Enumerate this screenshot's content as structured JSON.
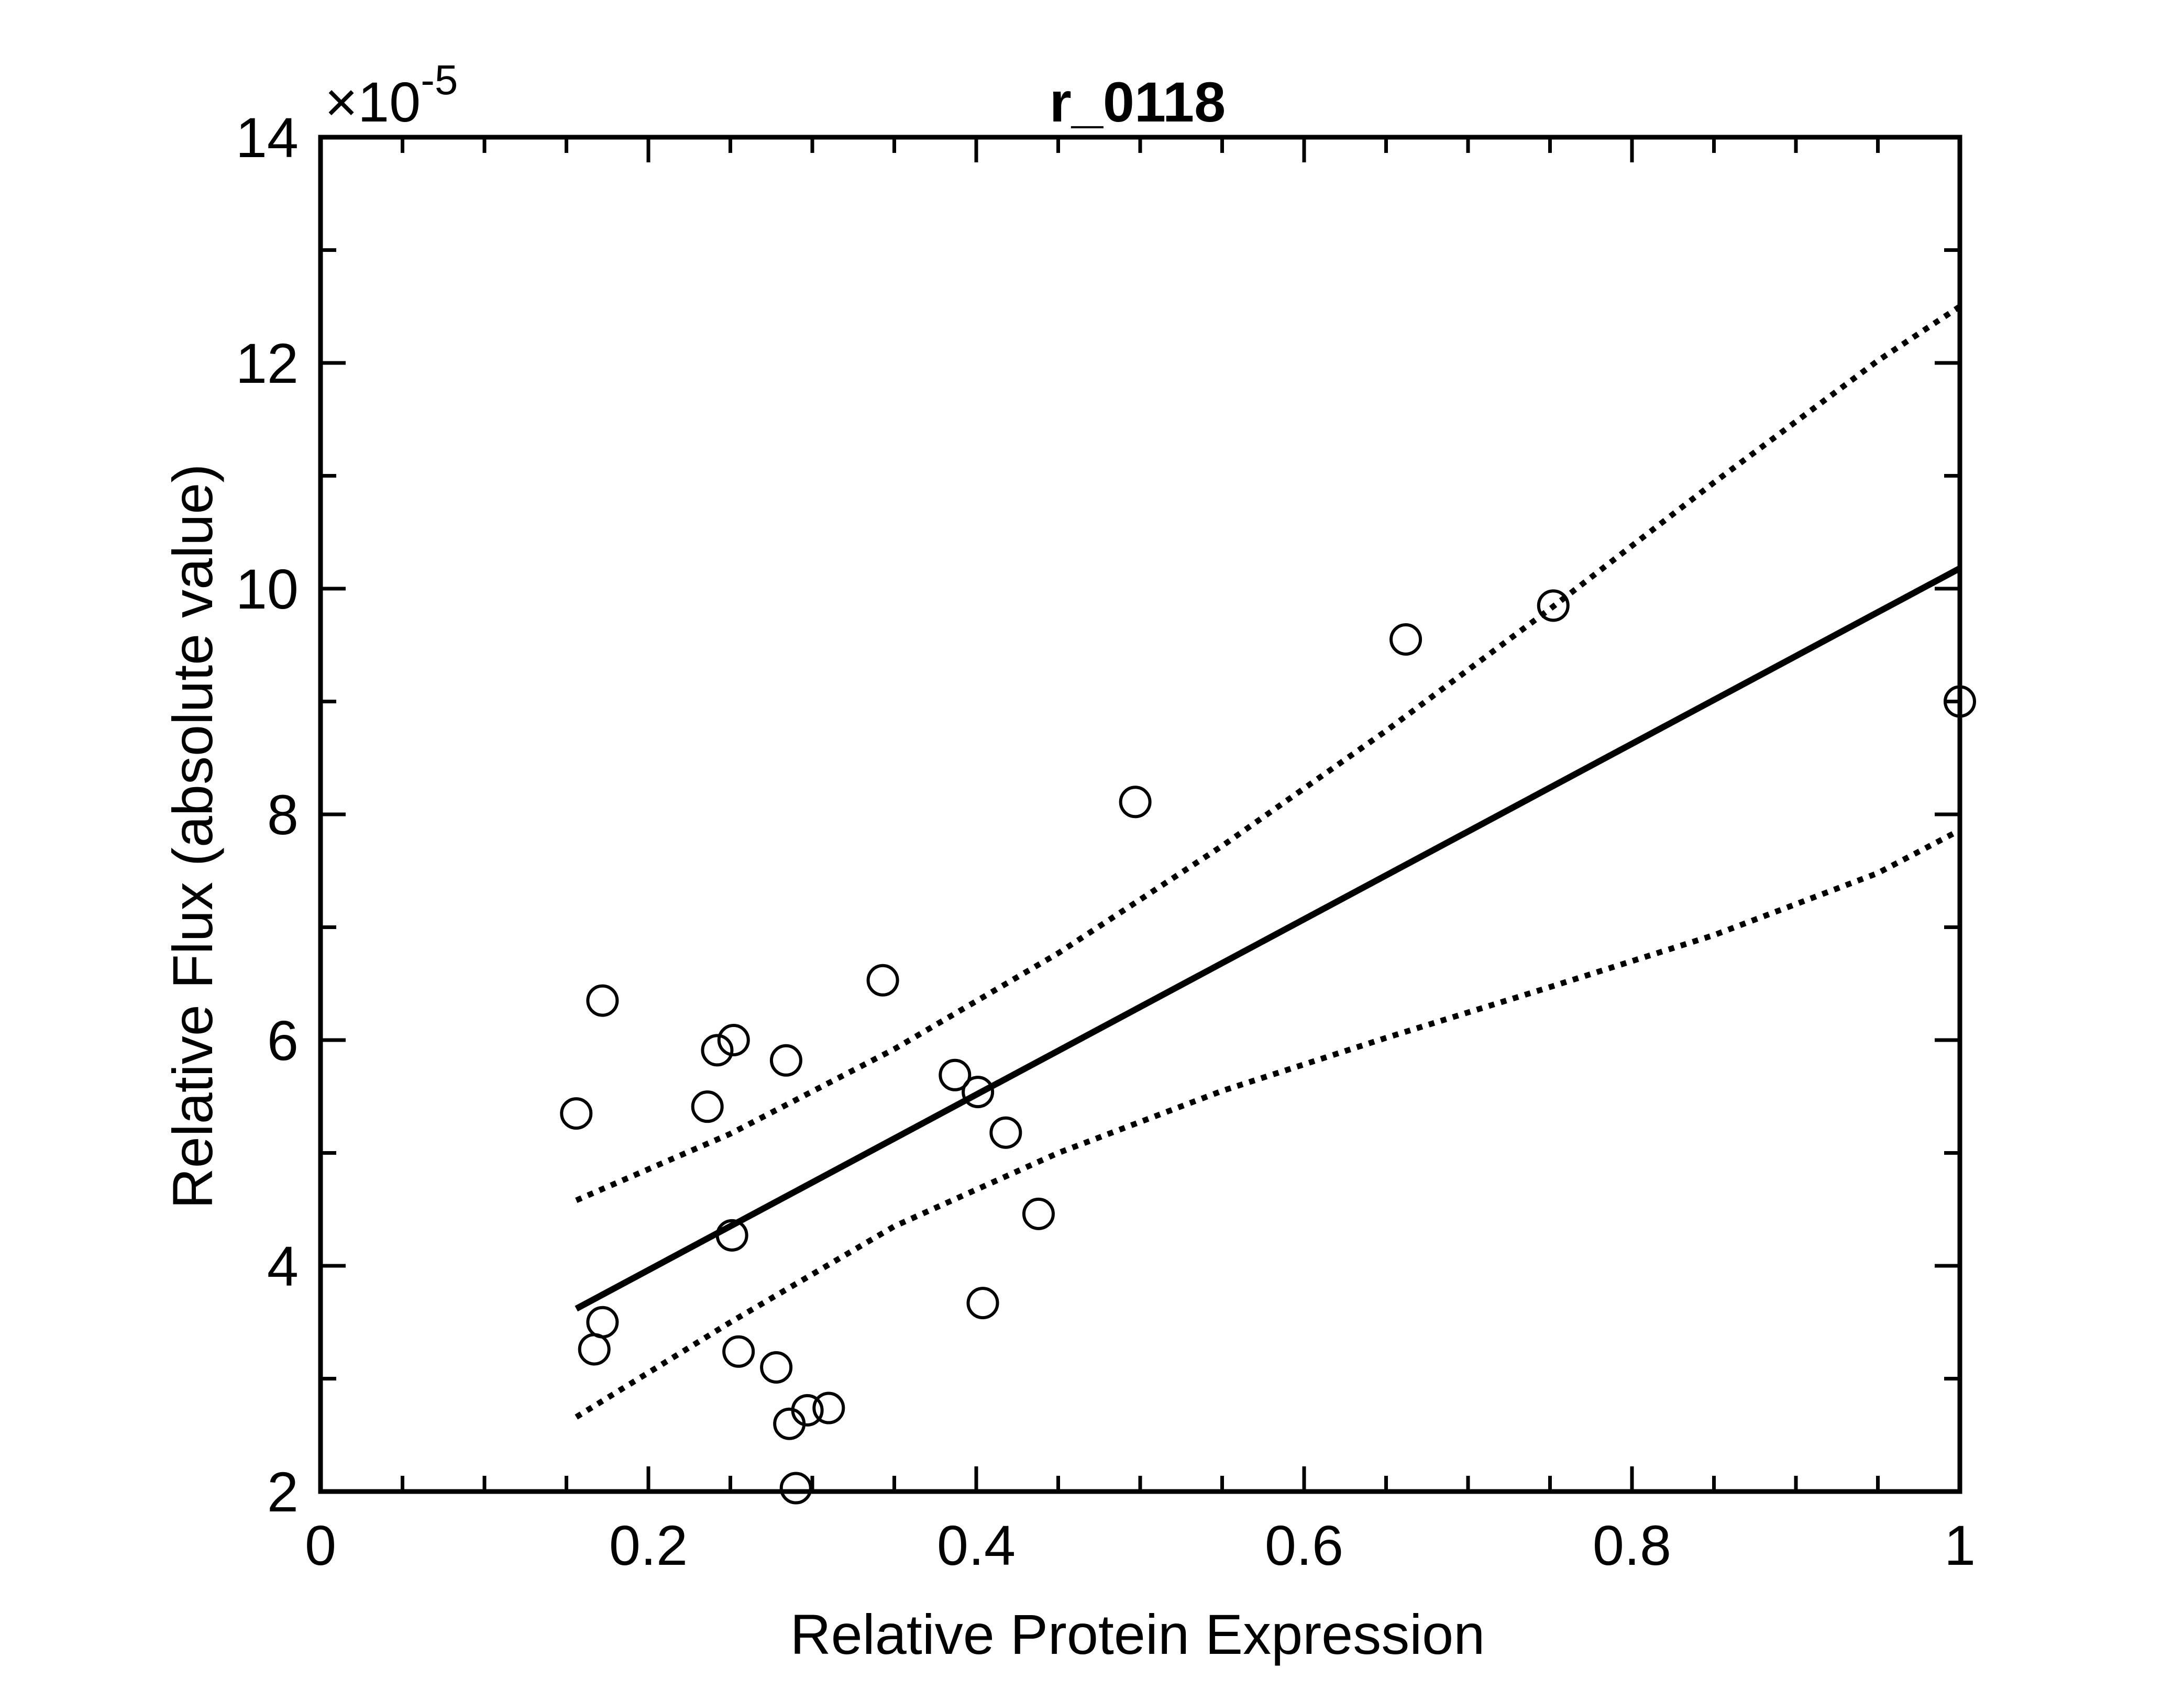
{
  "chart_data": {
    "type": "scatter",
    "title": "r_0118",
    "xlabel": "Relative Protein Expression",
    "ylabel": "Relative Flux (absolute value)",
    "y_exponent": {
      "prefix": "×10",
      "power": "-5"
    },
    "xlim": [
      0,
      1
    ],
    "ylim": [
      2,
      14
    ],
    "x_ticks": [
      0,
      0.2,
      0.4,
      0.6,
      0.8,
      1
    ],
    "x_tick_labels": [
      "0",
      "0.2",
      "0.4",
      "0.6",
      "0.8",
      "1"
    ],
    "y_ticks": [
      2,
      4,
      6,
      8,
      10,
      12,
      14
    ],
    "y_tick_labels": [
      "2",
      "4",
      "6",
      "8",
      "10",
      "12",
      "14"
    ],
    "x_minor_step": 0.05,
    "y_minor_step": 1,
    "grid": false,
    "colors": {
      "marker": "#000000",
      "lines": "#000000",
      "axes": "#000000"
    },
    "series": [
      {
        "style": "open-circle-markers",
        "points": [
          {
            "x": 0.156,
            "y": 5.35
          },
          {
            "x": 0.172,
            "y": 6.35
          },
          {
            "x": 0.167,
            "y": 3.26
          },
          {
            "x": 0.172,
            "y": 3.5
          },
          {
            "x": 0.236,
            "y": 5.41
          },
          {
            "x": 0.242,
            "y": 5.91
          },
          {
            "x": 0.252,
            "y": 6.0
          },
          {
            "x": 0.251,
            "y": 4.27
          },
          {
            "x": 0.255,
            "y": 3.24
          },
          {
            "x": 0.278,
            "y": 3.1
          },
          {
            "x": 0.284,
            "y": 5.82
          },
          {
            "x": 0.286,
            "y": 2.6
          },
          {
            "x": 0.29,
            "y": 2.03
          },
          {
            "x": 0.297,
            "y": 2.72
          },
          {
            "x": 0.31,
            "y": 2.74
          },
          {
            "x": 0.343,
            "y": 6.53
          },
          {
            "x": 0.387,
            "y": 5.69
          },
          {
            "x": 0.401,
            "y": 5.54
          },
          {
            "x": 0.404,
            "y": 3.67
          },
          {
            "x": 0.418,
            "y": 5.18
          },
          {
            "x": 0.438,
            "y": 4.46
          },
          {
            "x": 0.497,
            "y": 8.11
          },
          {
            "x": 0.662,
            "y": 9.55
          },
          {
            "x": 0.752,
            "y": 9.85
          },
          {
            "x": 1.0,
            "y": 9.0
          }
        ]
      },
      {
        "style": "solid-line",
        "points": [
          {
            "x": 0.156,
            "y": 3.62
          },
          {
            "x": 1.0,
            "y": 10.18
          }
        ]
      },
      {
        "style": "dotted-line",
        "points": [
          {
            "x": 0.156,
            "y": 4.58
          },
          {
            "x": 0.25,
            "y": 5.17
          },
          {
            "x": 0.35,
            "y": 5.92
          },
          {
            "x": 0.45,
            "y": 6.77
          },
          {
            "x": 0.55,
            "y": 7.72
          },
          {
            "x": 0.65,
            "y": 8.74
          },
          {
            "x": 0.75,
            "y": 9.82
          },
          {
            "x": 0.85,
            "y": 10.94
          },
          {
            "x": 0.95,
            "y": 12.02
          },
          {
            "x": 1.0,
            "y": 12.5
          }
        ]
      },
      {
        "style": "dotted-line",
        "points": [
          {
            "x": 0.156,
            "y": 2.66
          },
          {
            "x": 0.25,
            "y": 3.5
          },
          {
            "x": 0.35,
            "y": 4.35
          },
          {
            "x": 0.45,
            "y": 5.0
          },
          {
            "x": 0.55,
            "y": 5.55
          },
          {
            "x": 0.65,
            "y": 6.02
          },
          {
            "x": 0.75,
            "y": 6.47
          },
          {
            "x": 0.85,
            "y": 6.93
          },
          {
            "x": 0.95,
            "y": 7.48
          },
          {
            "x": 1.0,
            "y": 7.86
          }
        ]
      }
    ]
  }
}
